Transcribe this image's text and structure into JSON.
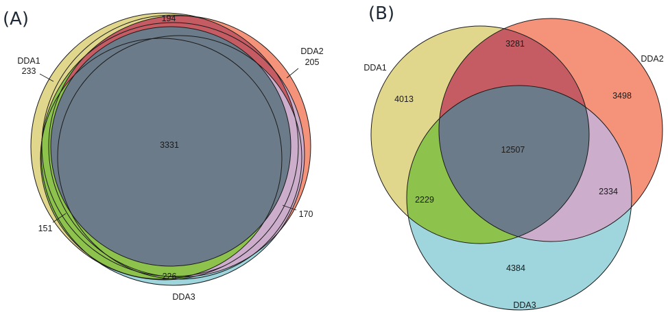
{
  "colors": {
    "set1_only": "#e0d68c",
    "set2_only": "#f4937a",
    "set3_only": "#9fd6dd",
    "set12": "#c55c63",
    "set13": "#8dc24c",
    "set23": "#ccadcc",
    "set123": "#6c7b89"
  },
  "panels": [
    {
      "label": "(A)",
      "sets": [
        "DDA1",
        "DDA2",
        "DDA3"
      ],
      "regions": {
        "only1": "233",
        "only2": "205",
        "only3": "226",
        "s12": "194",
        "s13": "151",
        "s23": "170",
        "s123": "3331"
      }
    },
    {
      "label": "(B)",
      "sets": [
        "DDA1",
        "DDA2",
        "DDA3"
      ],
      "regions": {
        "only1": "4013",
        "only2": "3498",
        "only3": "4384",
        "s12": "3281",
        "s13": "2229",
        "s23": "2334",
        "s123": "12507"
      }
    }
  ],
  "chart_data": [
    {
      "type": "venn",
      "title": "(A)",
      "sets": [
        "DDA1",
        "DDA2",
        "DDA3"
      ],
      "counts": {
        "DDA1 only": 233,
        "DDA2 only": 205,
        "DDA3 only": 226,
        "DDA1&DDA2": 194,
        "DDA1&DDA3": 151,
        "DDA2&DDA3": 170,
        "DDA1&DDA2&DDA3": 3331
      }
    },
    {
      "type": "venn",
      "title": "(B)",
      "sets": [
        "DDA1",
        "DDA2",
        "DDA3"
      ],
      "counts": {
        "DDA1 only": 4013,
        "DDA2 only": 3498,
        "DDA3 only": 4384,
        "DDA1&DDA2": 3281,
        "DDA1&DDA3": 2229,
        "DDA2&DDA3": 2334,
        "DDA1&DDA2&DDA3": 12507
      }
    }
  ]
}
